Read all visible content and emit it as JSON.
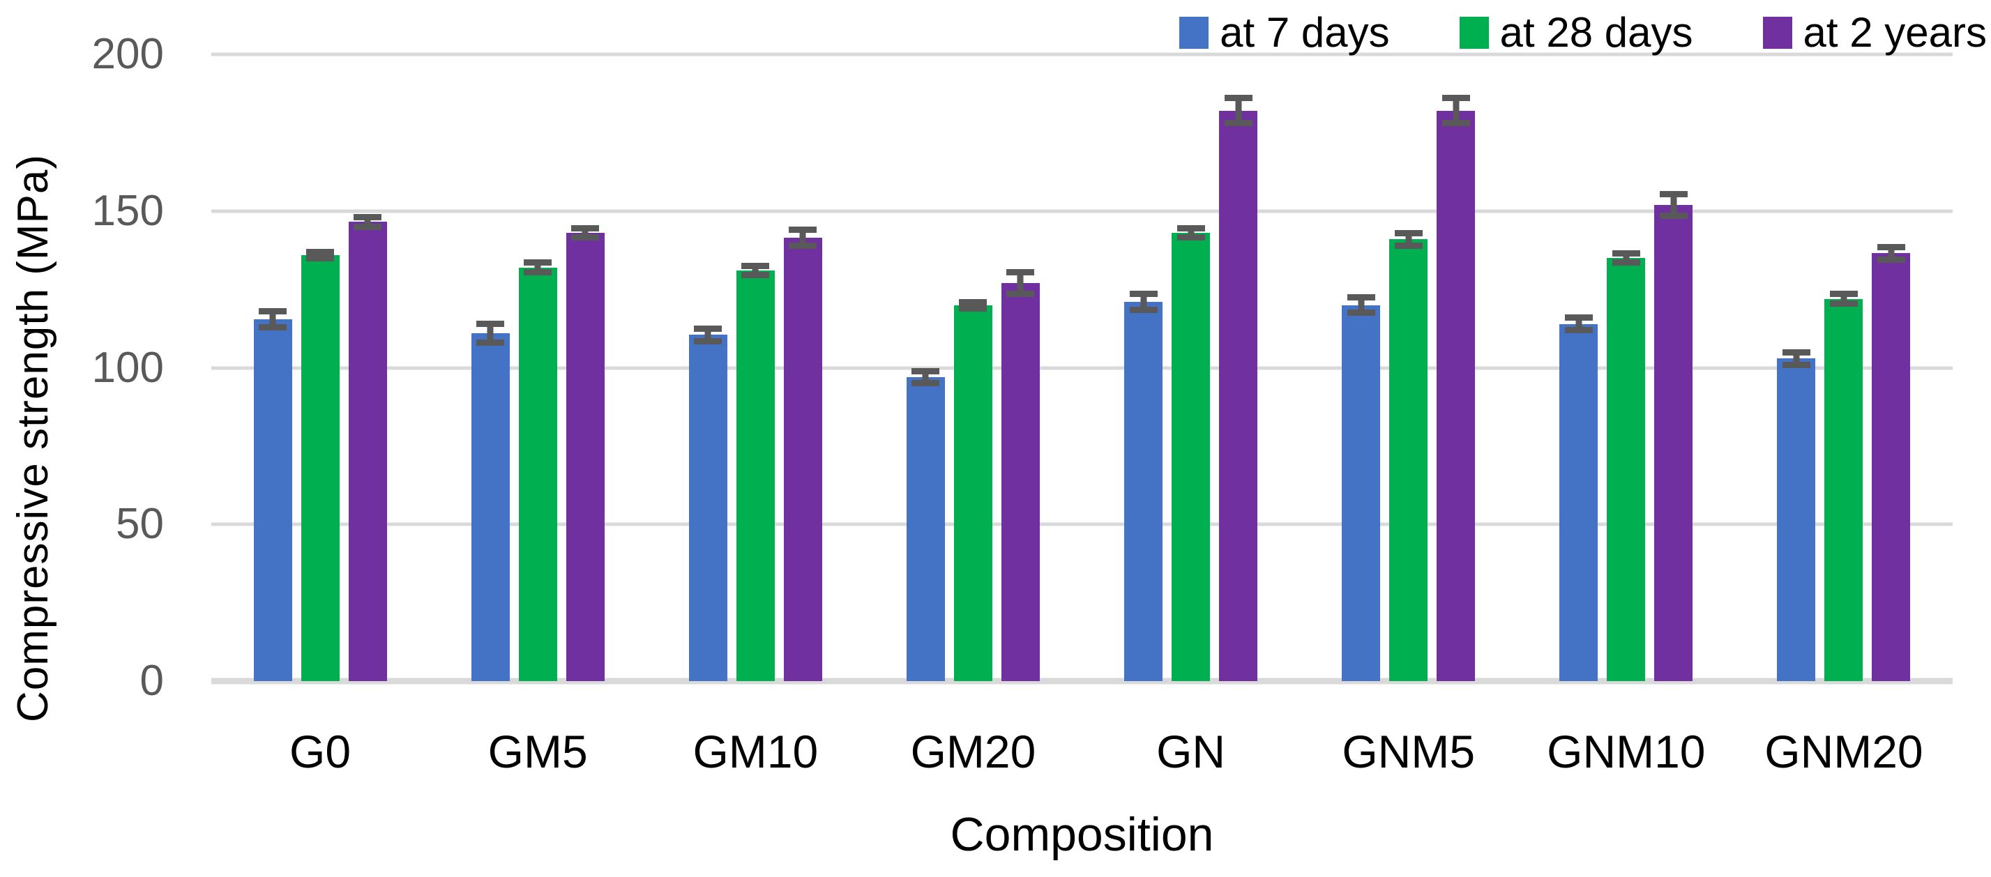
{
  "chart_data": {
    "type": "bar",
    "title": "",
    "xlabel": "Composition",
    "ylabel": "Compressive strength (MPa)",
    "ylim": [
      0,
      200
    ],
    "yticks": [
      0,
      50,
      100,
      150,
      200
    ],
    "grid": "horizontal",
    "legend_position": "top-right",
    "categories": [
      "G0",
      "GM5",
      "GM10",
      "GM20",
      "GN",
      "GNM5",
      "GNM10",
      "GNM20"
    ],
    "series": [
      {
        "name": "at 7 days",
        "color": "#4472C4",
        "values": [
          115.5,
          111,
          110.5,
          97,
          121,
          120,
          114,
          103
        ],
        "errors": [
          3.5,
          4,
          3,
          3,
          3.5,
          3.5,
          3,
          3
        ]
      },
      {
        "name": "at 28 days",
        "color": "#00B050",
        "values": [
          136,
          132,
          131,
          120,
          143,
          141,
          135,
          122
        ],
        "errors": [
          2,
          2.5,
          2.5,
          2,
          2.5,
          3,
          2.5,
          2.5
        ]
      },
      {
        "name": "at 2 years",
        "color": "#7030A0",
        "values": [
          146.5,
          143,
          141.5,
          127,
          182,
          182,
          152,
          136.5
        ],
        "errors": [
          2.5,
          2.5,
          3.5,
          4.5,
          5,
          5,
          4.5,
          3
        ]
      }
    ],
    "error_bar_color": "#595959",
    "gridline_color": "#D9D9D9",
    "tick_label_color": "#595959",
    "background_color": "#FFFFFF"
  }
}
